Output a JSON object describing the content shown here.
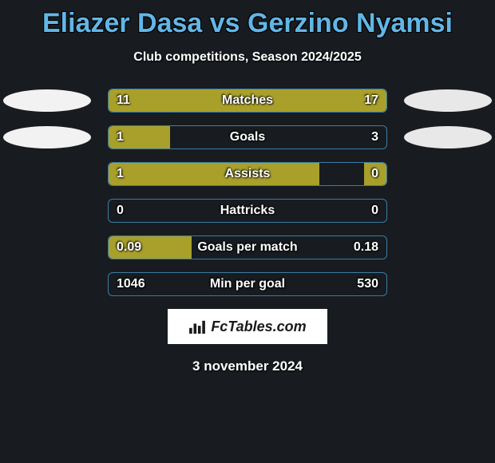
{
  "header": {
    "title": "Eliazer Dasa vs Gerzino Nyamsi",
    "subtitle": "Club competitions, Season 2024/2025",
    "title_color": "#62b6e6",
    "title_fontsize": 34,
    "subtitle_color": "#ffffff",
    "subtitle_fontsize": 16
  },
  "players": {
    "left_oval_color": "#f2f2f2",
    "right_oval_color": "#e8e8e8"
  },
  "chart": {
    "track_width": 350,
    "track_border_color": "#3a7ca3",
    "left_fill_color": "#a8a02b",
    "right_fill_color": "#a8a02b",
    "label_color": "#ffffff",
    "value_color": "#ffffff",
    "label_fontsize": 16,
    "background_color": "#181c20",
    "rows": [
      {
        "label": "Matches",
        "left_val": "11",
        "right_val": "17",
        "left_pct": 39,
        "right_pct": 61,
        "show_ovals": true
      },
      {
        "label": "Goals",
        "left_val": "1",
        "right_val": "3",
        "left_pct": 22,
        "right_pct": 0,
        "show_ovals": true
      },
      {
        "label": "Assists",
        "left_val": "1",
        "right_val": "0",
        "left_pct": 76,
        "right_pct": 8,
        "show_ovals": false
      },
      {
        "label": "Hattricks",
        "left_val": "0",
        "right_val": "0",
        "left_pct": 0,
        "right_pct": 0,
        "show_ovals": false
      },
      {
        "label": "Goals per match",
        "left_val": "0.09",
        "right_val": "0.18",
        "left_pct": 30,
        "right_pct": 0,
        "show_ovals": false
      },
      {
        "label": "Min per goal",
        "left_val": "1046",
        "right_val": "530",
        "left_pct": 0,
        "right_pct": 0,
        "show_ovals": false
      }
    ]
  },
  "branding": {
    "text": "FcTables.com",
    "bg_color": "#ffffff",
    "text_color": "#1a1a1a"
  },
  "footer": {
    "date": "3 november 2024",
    "color": "#ffffff",
    "fontsize": 17
  }
}
